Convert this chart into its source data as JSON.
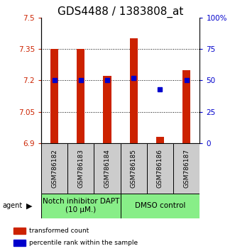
{
  "title": "GDS4488 / 1383808_at",
  "categories": [
    "GSM786182",
    "GSM786183",
    "GSM786184",
    "GSM786185",
    "GSM786186",
    "GSM786187"
  ],
  "bar_values": [
    7.35,
    7.35,
    7.22,
    7.4,
    6.93,
    7.25
  ],
  "bar_bottom": 6.9,
  "percentile_values": [
    50,
    50,
    50,
    52,
    43,
    50
  ],
  "ylim_left": [
    6.9,
    7.5
  ],
  "ylim_right": [
    0,
    100
  ],
  "yticks_left": [
    6.9,
    7.05,
    7.2,
    7.35,
    7.5
  ],
  "yticks_right": [
    0,
    25,
    50,
    75,
    100
  ],
  "ytick_labels_left": [
    "6.9",
    "7.05",
    "7.2",
    "7.35",
    "7.5"
  ],
  "ytick_labels_right": [
    "0",
    "25",
    "50",
    "75",
    "100%"
  ],
  "bar_color": "#cc2200",
  "square_color": "#0000cc",
  "grid_color": "#000000",
  "group1_label": "Notch inhibitor DAPT\n(10 μM.)",
  "group2_label": "DMSO control",
  "group1_indices": [
    0,
    1,
    2
  ],
  "group2_indices": [
    3,
    4,
    5
  ],
  "group_bg_color": "#88ee88",
  "sample_box_color": "#cccccc",
  "agent_label": "agent",
  "arrow": "▶",
  "legend_bar_label": "transformed count",
  "legend_square_label": "percentile rank within the sample",
  "title_fontsize": 11,
  "tick_fontsize": 7.5,
  "label_fontsize": 6.5,
  "group_fontsize": 7.5,
  "bar_width": 0.3
}
